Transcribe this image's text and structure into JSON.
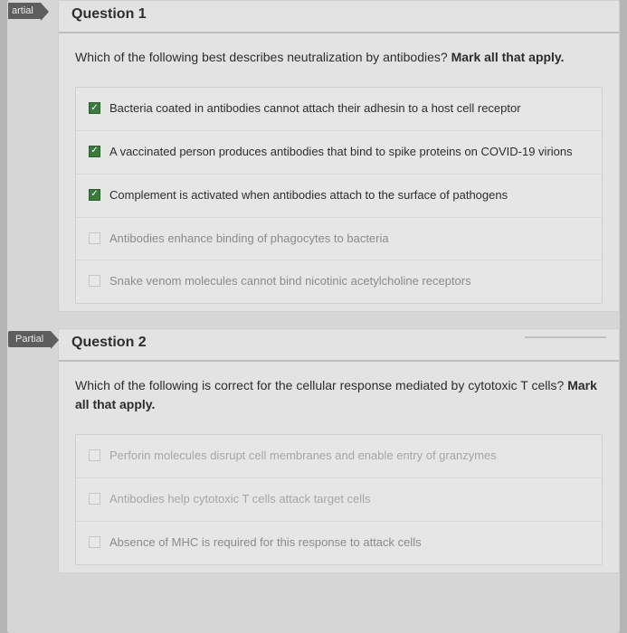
{
  "questions": [
    {
      "tag": "artial",
      "tag_cut": true,
      "title": "Question 1",
      "prompt_plain": "Which of the following best describes neutralization by antibodies?",
      "prompt_bold": "Mark all that apply.",
      "options": [
        {
          "checked": true,
          "fade": "normal",
          "text": "Bacteria coated in antibodies cannot attach their adhesin to a host cell receptor"
        },
        {
          "checked": true,
          "fade": "normal",
          "text": "A vaccinated person produces antibodies that bind to spike proteins on COVID-19 virions"
        },
        {
          "checked": true,
          "fade": "normal",
          "text": "Complement is activated when antibodies attach to the surface of pathogens"
        },
        {
          "checked": false,
          "fade": "faded",
          "text": "Antibodies enhance binding of phagocytes to bacteria"
        },
        {
          "checked": false,
          "fade": "faded",
          "text": "Snake venom molecules cannot bind nicotinic acetylcholine receptors"
        }
      ]
    },
    {
      "tag": "Partial",
      "tag_cut": false,
      "title": "Question 2",
      "prompt_plain": "Which of the following is correct for the cellular response mediated by cytotoxic T cells?",
      "prompt_bold": "Mark all that apply.",
      "options": [
        {
          "checked": false,
          "fade": "veryfaded",
          "text": "Perforin molecules disrupt cell membranes and enable entry of granzymes"
        },
        {
          "checked": false,
          "fade": "veryfaded",
          "text": "Antibodies help cytotoxic T cells attack target cells"
        },
        {
          "checked": false,
          "fade": "faded",
          "text": "Absence of MHC is required for this response to attack cells"
        }
      ]
    }
  ]
}
